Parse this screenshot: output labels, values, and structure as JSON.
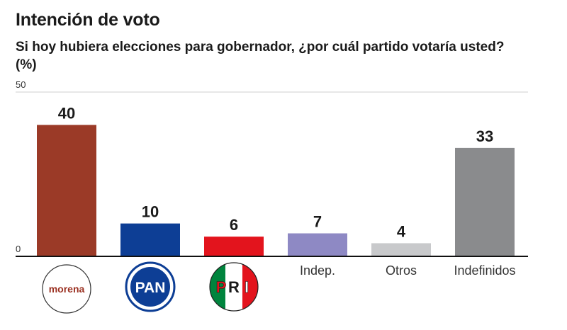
{
  "header": {
    "title": "Intención de voto",
    "subtitle": "Si hoy hubiera elecciones para gobernador, ¿por cuál partido votaría usted? (%)"
  },
  "chart_data": {
    "type": "bar",
    "title": "Intención de voto",
    "subtitle": "Si hoy hubiera elecciones para gobernador, ¿por cuál partido votaría usted? (%)",
    "categories": [
      "morena",
      "PAN",
      "PRI",
      "Indep.",
      "Otros",
      "Indefinidos"
    ],
    "values": [
      40,
      10,
      6,
      7,
      4,
      33
    ],
    "colors": [
      "#9b3a27",
      "#0d3e95",
      "#e3141d",
      "#8e89c4",
      "#c8c9cb",
      "#8a8b8d"
    ],
    "ylim": [
      0,
      50
    ],
    "yticks": [
      0,
      50
    ],
    "xlabel": "",
    "ylabel": "",
    "logos": {
      "morena": {
        "text": "morena",
        "color": "#9b3122"
      },
      "PAN": {
        "text": "PAN",
        "color": "#0d3e95"
      },
      "PRI": {
        "letters": [
          "P",
          "R",
          "I"
        ],
        "colors": [
          "#00843d",
          "#e3141d"
        ]
      }
    }
  }
}
